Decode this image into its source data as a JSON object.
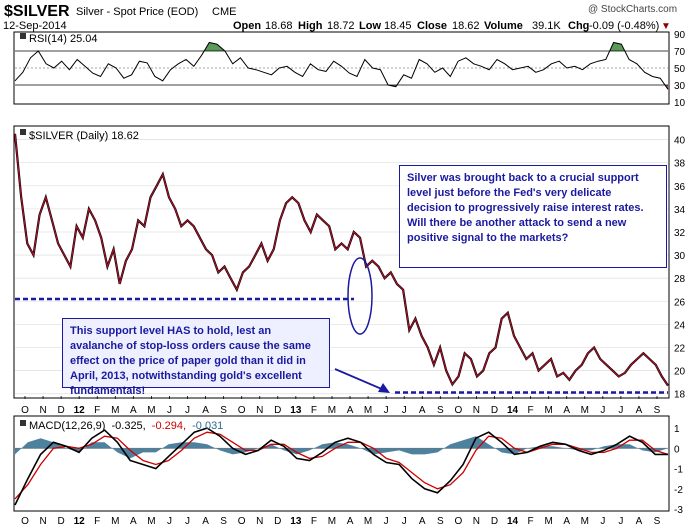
{
  "header": {
    "symbol": "$SILVER",
    "description": "Silver - Spot Price (EOD)",
    "exchange": "CME",
    "date": "12-Sep-2014",
    "watermark": "@ StockCharts.com",
    "quote": {
      "open_label": "Open",
      "open": "18.68",
      "high_label": "High",
      "high": "18.72",
      "low_label": "Low",
      "low": "18.45",
      "close_label": "Close",
      "close": "18.62",
      "volume_label": "Volume",
      "volume": "39.1K",
      "chg_label": "Chg",
      "chg": "-0.09 (-0.48%)",
      "chg_arrow": "▼"
    }
  },
  "annotations": {
    "top_right": "Silver was brought back to a crucial support level just before the Fed's very delicate decision to progressively raise interest rates. Will there be another attack to send a new positive signal to the markets?",
    "bottom_left": "This support level HAS to hold, lest an avalanche of stop-loss orders cause the same effect on the price of paper gold than it did in April, 2013, notwithstanding gold's excellent fundamentals!"
  },
  "colors": {
    "price_line": "#b0102a",
    "price_dark": "#000000",
    "annotation_text": "#1a1aa0",
    "top_annotation_bg": "#ffffff",
    "bottom_annotation_bg": "#eef0ff",
    "support_line": "#1a1aa0",
    "rsi_fill_overbought": "#5a9a5a",
    "rsi_fill_oversold": "#b05050",
    "macd_line": "#000000",
    "signal_line": "#cc0000",
    "histogram": "#2f6b8c"
  },
  "chart_data": [
    {
      "type": "line",
      "panel": "RSI",
      "legend": "RSI(14) 25.04",
      "ylim": [
        10,
        90
      ],
      "ticks": [
        "90",
        "70",
        "50",
        "30",
        "10"
      ],
      "levels": [
        70,
        30
      ],
      "values": [
        35,
        45,
        62,
        70,
        55,
        50,
        58,
        48,
        60,
        52,
        44,
        40,
        55,
        50,
        38,
        42,
        58,
        56,
        40,
        35,
        48,
        55,
        60,
        52,
        65,
        80,
        78,
        70,
        55,
        62,
        50,
        48,
        45,
        42,
        50,
        52,
        45,
        40,
        55,
        48,
        46,
        58,
        52,
        44,
        40,
        60,
        50,
        48,
        30,
        28,
        42,
        38,
        60,
        55,
        45,
        50,
        40,
        58,
        62,
        55,
        52,
        48,
        60,
        55,
        48,
        50,
        52,
        45,
        48,
        55,
        58,
        50,
        52,
        48,
        55,
        58,
        60,
        80,
        78,
        60,
        55,
        45,
        40,
        38,
        25
      ]
    },
    {
      "type": "line",
      "panel": "Price",
      "title": "$SILVER (Daily) 18.62",
      "ylim": [
        17.8,
        41
      ],
      "ticks": [
        "40",
        "38",
        "36",
        "34",
        "32",
        "30",
        "28",
        "26",
        "24",
        "22",
        "20",
        "18"
      ],
      "x_labels": [
        "O",
        "N",
        "D",
        "12",
        "F",
        "M",
        "A",
        "M",
        "J",
        "J",
        "A",
        "S",
        "O",
        "N",
        "D",
        "13",
        "F",
        "M",
        "A",
        "M",
        "J",
        "J",
        "A",
        "S",
        "O",
        "N",
        "D",
        "14",
        "F",
        "M",
        "A",
        "M",
        "J",
        "J",
        "A",
        "S"
      ],
      "values": [
        40.5,
        35,
        31,
        30,
        33.5,
        35,
        33,
        31,
        30,
        29,
        32.5,
        31.5,
        34,
        33,
        31.5,
        29,
        30.5,
        27.5,
        29.5,
        30.5,
        33,
        32.5,
        35,
        36,
        37,
        35,
        34,
        32.5,
        33,
        32.5,
        31.5,
        30.5,
        30,
        28.5,
        29,
        28,
        27,
        28.5,
        29,
        30,
        31,
        29.5,
        30.5,
        33,
        34.5,
        35,
        34.5,
        33,
        32,
        33.5,
        33,
        32.5,
        30.5,
        31,
        30.5,
        32,
        31.5,
        29,
        29.5,
        29,
        28,
        28.5,
        27.5,
        27,
        23.5,
        24.5,
        23,
        22,
        20.5,
        22,
        20,
        18.8,
        19.5,
        21.5,
        21,
        19.5,
        20,
        21.5,
        22,
        24.5,
        25,
        23,
        22,
        21,
        21.5,
        20,
        20.5,
        21,
        19.5,
        19.8,
        19.2,
        20,
        20.5,
        21.5,
        22,
        21,
        20.5,
        20,
        19.5,
        19.8,
        20.5,
        21,
        21.5,
        21,
        20.5,
        19.5,
        18.7
      ],
      "support_levels": [
        26.2,
        18.1
      ]
    },
    {
      "type": "line",
      "panel": "MACD",
      "legend": "MACD(12,26,9) -0.325, -0.294, -0.031",
      "legend_parts": [
        "MACD(12,26,9)",
        "-0.325,",
        "-0.294,",
        "-0.031"
      ],
      "ylim": [
        -3,
        1.5
      ],
      "ticks": [
        "1",
        "0",
        "-1",
        "-2",
        "-3"
      ],
      "series": [
        {
          "values": [
            -2.8,
            -1.5,
            -0.3,
            0.3,
            0.1,
            -0.2,
            0.5,
            0.9,
            0.3,
            -0.6,
            -0.8,
            -1.0,
            -0.4,
            0.2,
            0.8,
            1.0,
            0.6,
            0.0,
            -0.3,
            -0.1,
            0.4,
            0.1,
            -0.5,
            -0.6,
            -0.2,
            0.3,
            0.5,
            0.3,
            -0.3,
            -0.7,
            -0.8,
            -1.5,
            -2.0,
            -2.2,
            -1.6,
            -0.8,
            0.5,
            0.8,
            0.3,
            -0.3,
            -0.2,
            0.1,
            0.3,
            0.2,
            -0.1,
            -0.3,
            -0.1,
            0.2,
            0.6,
            0.3,
            -0.3,
            -0.3
          ]
        },
        {
          "values": [
            -2.5,
            -1.8,
            -0.8,
            0.0,
            0.1,
            0.0,
            0.2,
            0.6,
            0.5,
            -0.1,
            -0.6,
            -0.8,
            -0.6,
            -0.1,
            0.5,
            0.8,
            0.7,
            0.3,
            -0.1,
            -0.1,
            0.2,
            0.2,
            -0.2,
            -0.5,
            -0.4,
            0.0,
            0.3,
            0.3,
            0.0,
            -0.5,
            -0.7,
            -1.2,
            -1.7,
            -2.0,
            -1.8,
            -1.2,
            -0.1,
            0.6,
            0.5,
            0.0,
            -0.2,
            0.0,
            0.2,
            0.2,
            0.0,
            -0.2,
            -0.2,
            0.0,
            0.4,
            0.4,
            -0.1,
            -0.3
          ]
        },
        {
          "values": [
            -0.3,
            0.3,
            0.5,
            0.3,
            0.0,
            -0.2,
            0.3,
            0.3,
            -0.2,
            -0.5,
            -0.2,
            -0.2,
            0.2,
            0.3,
            0.3,
            0.2,
            -0.1,
            -0.3,
            -0.2,
            0.0,
            0.2,
            -0.1,
            -0.3,
            -0.1,
            0.2,
            0.3,
            0.2,
            0.0,
            -0.3,
            -0.2,
            -0.1,
            -0.3,
            -0.3,
            -0.2,
            0.2,
            0.4,
            0.6,
            0.2,
            -0.2,
            -0.3,
            0.0,
            0.1,
            0.1,
            0.0,
            -0.1,
            -0.1,
            0.1,
            0.2,
            0.2,
            -0.1,
            -0.2,
            0.0
          ]
        }
      ]
    }
  ]
}
